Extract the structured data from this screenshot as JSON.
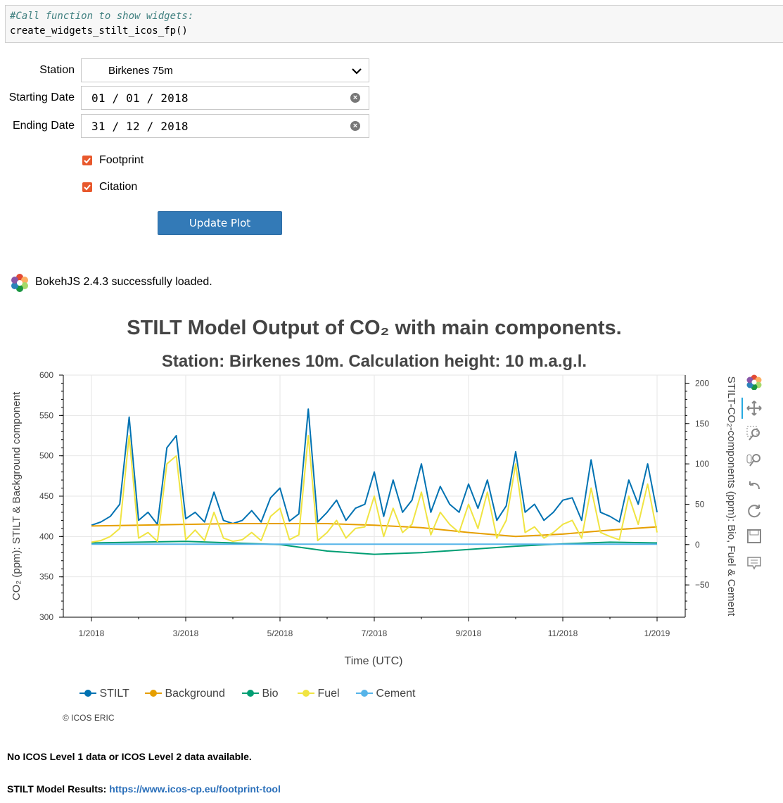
{
  "code": {
    "comment": "#Call function to show widgets:",
    "line": "create_widgets_stilt_icos_fp()"
  },
  "widgets": {
    "station_label": "Station",
    "station_value": "Birkenes 75m",
    "start_label": "Starting Date",
    "start_value": "01 / 01 / 2018",
    "end_label": "Ending Date",
    "end_value": "31 / 12 / 2018",
    "footprint_label": "Footprint",
    "citation_label": "Citation",
    "update_button": "Update Plot"
  },
  "bokeh": {
    "loaded_message": "BokehJS 2.4.3 successfully loaded."
  },
  "chart_data": {
    "type": "line",
    "title": "STILT Model Output of CO₂ with main components.",
    "subtitle": "Station: Birkenes 10m. Calculation height: 10 m.a.g.l.",
    "xlabel": "Time (UTC)",
    "ylabel_left": "CO₂ (ppm): STILT & Background component",
    "ylabel_right": "STILT-CO₂-components (ppm): Bio, Fuel & Cement",
    "x_ticks": [
      "1/2018",
      "3/2018",
      "5/2018",
      "7/2018",
      "9/2018",
      "11/2018",
      "1/2019"
    ],
    "ylim_left": [
      300,
      600
    ],
    "y_ticks_left": [
      "300",
      "350",
      "400",
      "450",
      "500",
      "550",
      "600"
    ],
    "ylim_right": [
      -90,
      210
    ],
    "y_ticks_right": [
      "−50",
      "0",
      "50",
      "100",
      "150",
      "200"
    ],
    "grid": true,
    "legend_position": "bottom",
    "series": [
      {
        "name": "STILT",
        "color": "#0072b2",
        "axis": "left",
        "x": [
          0.0,
          0.2,
          0.4,
          0.6,
          0.8,
          1.0,
          1.2,
          1.4,
          1.6,
          1.8,
          2.0,
          2.2,
          2.4,
          2.6,
          2.8,
          3.0,
          3.2,
          3.4,
          3.6,
          3.8,
          4.0,
          4.2,
          4.4,
          4.6,
          4.8,
          5.0,
          5.2,
          5.4,
          5.6,
          5.8,
          6.0,
          6.2,
          6.4,
          6.6,
          6.8,
          7.0,
          7.2,
          7.4,
          7.6,
          7.8,
          8.0,
          8.2,
          8.4,
          8.6,
          8.8,
          9.0,
          9.2,
          9.4,
          9.6,
          9.8,
          10.0,
          10.2,
          10.4,
          10.6,
          10.8,
          11.0,
          11.2,
          11.4,
          11.6,
          11.8,
          12.0
        ],
        "y": [
          414,
          418,
          425,
          440,
          548,
          420,
          430,
          415,
          510,
          525,
          422,
          430,
          418,
          455,
          420,
          416,
          420,
          432,
          418,
          448,
          460,
          419,
          428,
          558,
          418,
          430,
          445,
          420,
          435,
          440,
          480,
          425,
          470,
          430,
          445,
          490,
          430,
          462,
          440,
          430,
          465,
          435,
          470,
          420,
          438,
          505,
          430,
          440,
          420,
          430,
          445,
          448,
          420,
          495,
          430,
          425,
          418,
          470,
          440,
          490,
          430
        ]
      },
      {
        "name": "Background",
        "color": "#e69f00",
        "axis": "left",
        "x": [
          0,
          1,
          2,
          3,
          4,
          5,
          6,
          7,
          8,
          9,
          10,
          11,
          12
        ],
        "y": [
          413,
          414,
          415,
          416,
          416,
          416,
          414,
          411,
          405,
          400,
          403,
          408,
          412
        ]
      },
      {
        "name": "Bio",
        "color": "#009e73",
        "axis": "right",
        "x": [
          0,
          1,
          2,
          3,
          4,
          5,
          6,
          7,
          8,
          9,
          10,
          11,
          12
        ],
        "y": [
          2,
          3,
          4,
          2,
          0,
          -8,
          -12,
          -10,
          -6,
          -2,
          1,
          3,
          2
        ]
      },
      {
        "name": "Fuel",
        "color": "#f0e442",
        "axis": "right",
        "x": [
          0.0,
          0.2,
          0.4,
          0.6,
          0.8,
          1.0,
          1.2,
          1.4,
          1.6,
          1.8,
          2.0,
          2.2,
          2.4,
          2.6,
          2.8,
          3.0,
          3.2,
          3.4,
          3.6,
          3.8,
          4.0,
          4.2,
          4.4,
          4.6,
          4.8,
          5.0,
          5.2,
          5.4,
          5.6,
          5.8,
          6.0,
          6.2,
          6.4,
          6.6,
          6.8,
          7.0,
          7.2,
          7.4,
          7.6,
          7.8,
          8.0,
          8.2,
          8.4,
          8.6,
          8.8,
          9.0,
          9.2,
          9.4,
          9.6,
          9.8,
          10.0,
          10.2,
          10.4,
          10.6,
          10.8,
          11.0,
          11.2,
          11.4,
          11.6,
          11.8,
          12.0
        ],
        "y": [
          3,
          5,
          10,
          20,
          135,
          8,
          15,
          4,
          100,
          110,
          6,
          18,
          5,
          40,
          8,
          4,
          6,
          15,
          5,
          35,
          45,
          6,
          12,
          135,
          5,
          15,
          30,
          8,
          20,
          22,
          60,
          10,
          45,
          15,
          25,
          65,
          12,
          40,
          25,
          15,
          50,
          20,
          65,
          8,
          30,
          100,
          15,
          22,
          8,
          15,
          25,
          30,
          8,
          70,
          15,
          10,
          6,
          60,
          25,
          75,
          15
        ]
      },
      {
        "name": "Cement",
        "color": "#56b4e9",
        "axis": "right",
        "x": [
          0,
          12
        ],
        "y": [
          0.5,
          0.5
        ]
      }
    ]
  },
  "copyright": "© ICOS ERIC",
  "notes": {
    "no_data": "No ICOS Level 1 data or ICOS Level 2 data available.",
    "stilt_results_label": "STILT Model Results:",
    "stilt_results_link": "https://www.icos-cp.eu/footprint-tool"
  },
  "toolbar": [
    "bokeh-logo-icon",
    "pan-icon",
    "box-zoom-icon",
    "wheel-zoom-icon",
    "undo-icon",
    "reset-icon",
    "save-icon",
    "hover-icon"
  ]
}
